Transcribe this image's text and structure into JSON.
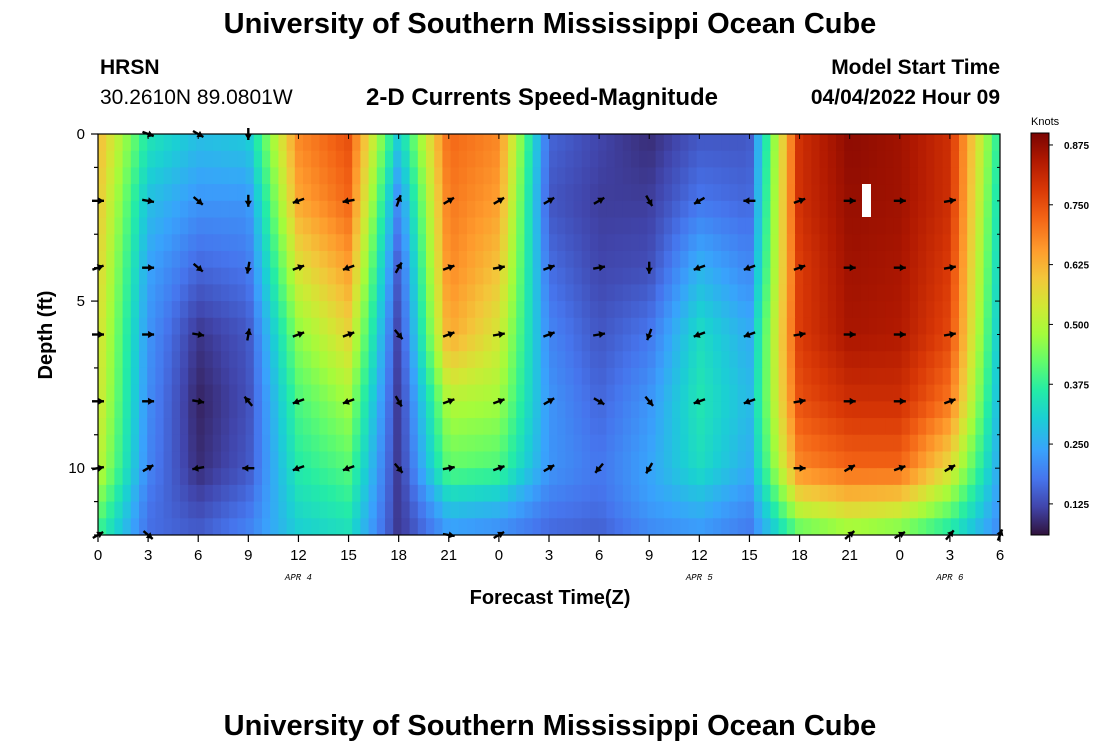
{
  "header": {
    "title": "University of Southern Mississippi Ocean Cube",
    "station_code": "HRSN",
    "station_coords": "30.2610N  89.0801W",
    "plot_title": "2-D Currents Speed-Magnitude",
    "model_label": "Model Start Time",
    "model_value": "04/04/2022 Hour 09"
  },
  "footer": {
    "title_repeat": "University of Southern Mississippi Ocean Cube"
  },
  "chart_data": {
    "type": "heatmap",
    "title": "2-D Currents Speed-Magnitude",
    "xlabel": "Forecast Time(Z)",
    "ylabel": "Depth (ft)",
    "x_ticks": [
      "0",
      "3",
      "6",
      "9",
      "12",
      "15",
      "18",
      "21",
      "0",
      "3",
      "6",
      "9",
      "12",
      "15",
      "18",
      "21",
      "0",
      "3",
      "6"
    ],
    "y_ticks": [
      "0",
      "5",
      "10"
    ],
    "xlim_hours": [
      0,
      54
    ],
    "ylim_ft": [
      12,
      0
    ],
    "date_labels": [
      {
        "text": "APR 4",
        "hour": 12
      },
      {
        "text": "APR 5",
        "hour": 36
      },
      {
        "text": "APR 6",
        "hour": 51
      }
    ],
    "colorbar": {
      "label": "Knots",
      "ticks": [
        "0.875",
        "0.750",
        "0.625",
        "0.500",
        "0.375",
        "0.250",
        "0.125"
      ],
      "range": [
        0.06,
        0.9
      ]
    },
    "speed_knots_by_hour": [
      {
        "hour": 0,
        "speeds": [
          0.62,
          0.6,
          0.58,
          0.56,
          0.55,
          0.52,
          0.45,
          0.38
        ]
      },
      {
        "hour": 3,
        "speeds": [
          0.35,
          0.28,
          0.24,
          0.22,
          0.21,
          0.2,
          0.18,
          0.17
        ]
      },
      {
        "hour": 6,
        "speeds": [
          0.28,
          0.22,
          0.16,
          0.1,
          0.08,
          0.09,
          0.12,
          0.15
        ]
      },
      {
        "hour": 9,
        "speeds": [
          0.3,
          0.22,
          0.18,
          0.14,
          0.13,
          0.14,
          0.17,
          0.2
        ]
      },
      {
        "hour": 12,
        "speeds": [
          0.68,
          0.64,
          0.55,
          0.46,
          0.4,
          0.36,
          0.33,
          0.3
        ]
      },
      {
        "hour": 15,
        "speeds": [
          0.75,
          0.72,
          0.65,
          0.57,
          0.48,
          0.41,
          0.37,
          0.33
        ]
      },
      {
        "hour": 18,
        "speeds": [
          0.3,
          0.2,
          0.14,
          0.11,
          0.1,
          0.1,
          0.1,
          0.1
        ]
      },
      {
        "hour": 21,
        "speeds": [
          0.72,
          0.7,
          0.68,
          0.64,
          0.5,
          0.42,
          0.3,
          0.22
        ]
      },
      {
        "hour": 24,
        "speeds": [
          0.68,
          0.65,
          0.6,
          0.54,
          0.48,
          0.4,
          0.28,
          0.2
        ]
      },
      {
        "hour": 27,
        "speeds": [
          0.16,
          0.14,
          0.17,
          0.2,
          0.22,
          0.22,
          0.19,
          0.16
        ]
      },
      {
        "hour": 30,
        "speeds": [
          0.12,
          0.11,
          0.12,
          0.14,
          0.16,
          0.18,
          0.17,
          0.15
        ]
      },
      {
        "hour": 33,
        "speeds": [
          0.09,
          0.11,
          0.13,
          0.18,
          0.22,
          0.24,
          0.23,
          0.2
        ]
      },
      {
        "hour": 36,
        "speeds": [
          0.14,
          0.18,
          0.26,
          0.33,
          0.35,
          0.33,
          0.27,
          0.22
        ]
      },
      {
        "hour": 39,
        "speeds": [
          0.14,
          0.16,
          0.2,
          0.25,
          0.27,
          0.25,
          0.21,
          0.18
        ]
      },
      {
        "hour": 42,
        "speeds": [
          0.8,
          0.8,
          0.78,
          0.78,
          0.75,
          0.68,
          0.55,
          0.4
        ]
      },
      {
        "hour": 45,
        "speeds": [
          0.88,
          0.87,
          0.86,
          0.85,
          0.8,
          0.72,
          0.6,
          0.45
        ]
      },
      {
        "hour": 48,
        "speeds": [
          0.86,
          0.86,
          0.85,
          0.84,
          0.8,
          0.72,
          0.58,
          0.42
        ]
      },
      {
        "hour": 51,
        "speeds": [
          0.8,
          0.8,
          0.78,
          0.76,
          0.7,
          0.56,
          0.45,
          0.34
        ]
      },
      {
        "hour": 54,
        "speeds": [
          0.35,
          0.32,
          0.3,
          0.28,
          0.26,
          0.24,
          0.22,
          0.2
        ]
      }
    ],
    "depth_levels_ft": [
      0,
      2,
      4,
      6,
      8,
      10,
      11,
      12
    ],
    "vector_depths_ft": [
      0,
      2,
      4,
      6,
      8,
      10,
      12
    ],
    "vectors": [
      {
        "hour": 0,
        "dirs": [
          null,
          90,
          70,
          90,
          90,
          80,
          60
        ]
      },
      {
        "hour": 3,
        "dirs": [
          110,
          100,
          90,
          90,
          90,
          60,
          130
        ]
      },
      {
        "hour": 6,
        "dirs": [
          120,
          130,
          130,
          100,
          100,
          260,
          null
        ]
      },
      {
        "hour": 9,
        "dirs": [
          180,
          180,
          190,
          10,
          320,
          270,
          null
        ]
      },
      {
        "hour": 12,
        "dirs": [
          null,
          250,
          70,
          70,
          250,
          250,
          null
        ]
      },
      {
        "hour": 15,
        "dirs": [
          null,
          260,
          250,
          70,
          250,
          250,
          null
        ]
      },
      {
        "hour": 18,
        "dirs": [
          null,
          20,
          30,
          140,
          150,
          140,
          null
        ]
      },
      {
        "hour": 21,
        "dirs": [
          null,
          60,
          70,
          70,
          70,
          80,
          100
        ]
      },
      {
        "hour": 24,
        "dirs": [
          null,
          60,
          80,
          80,
          70,
          70,
          60
        ]
      },
      {
        "hour": 27,
        "dirs": [
          null,
          60,
          70,
          70,
          60,
          60,
          null
        ]
      },
      {
        "hour": 30,
        "dirs": [
          null,
          60,
          80,
          80,
          120,
          220,
          null
        ]
      },
      {
        "hour": 33,
        "dirs": [
          null,
          150,
          180,
          200,
          140,
          210,
          null
        ]
      },
      {
        "hour": 36,
        "dirs": [
          null,
          240,
          250,
          250,
          250,
          null,
          null
        ]
      },
      {
        "hour": 39,
        "dirs": [
          null,
          270,
          250,
          250,
          250,
          null,
          null
        ]
      },
      {
        "hour": 42,
        "dirs": [
          null,
          70,
          70,
          80,
          80,
          90,
          null
        ]
      },
      {
        "hour": 45,
        "dirs": [
          null,
          90,
          90,
          90,
          90,
          60,
          50
        ]
      },
      {
        "hour": 48,
        "dirs": [
          null,
          90,
          90,
          90,
          90,
          70,
          60
        ]
      },
      {
        "hour": 51,
        "dirs": [
          null,
          80,
          80,
          80,
          70,
          60,
          40
        ]
      },
      {
        "hour": 54,
        "dirs": [
          null,
          null,
          null,
          null,
          null,
          null,
          20
        ]
      }
    ]
  }
}
